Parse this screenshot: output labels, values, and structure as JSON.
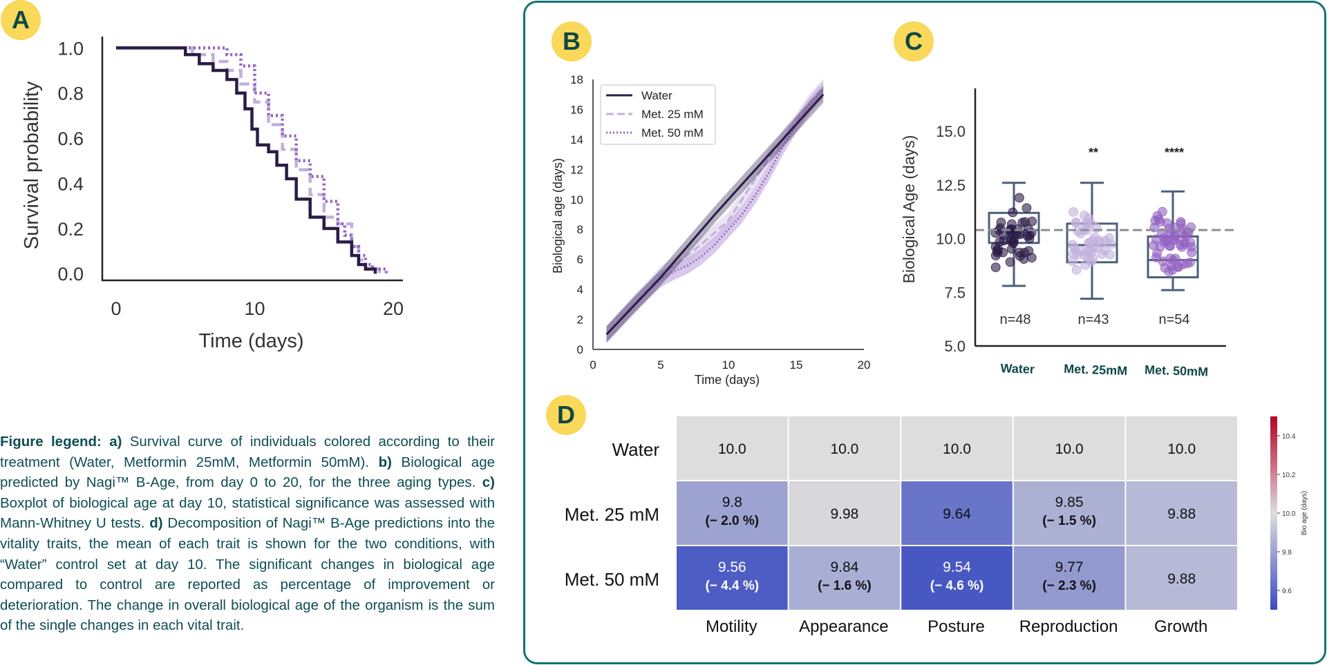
{
  "badges": {
    "a": "A",
    "b": "B",
    "c": "C",
    "d": "D"
  },
  "legend": {
    "title": "Figure legend:",
    "a_label": "a)",
    "a_text": "Survival curve of individuals colored according to their treatment (Water, Metformin 25mM, Metformin 50mM).",
    "b_label": "b)",
    "b_text": "Biological age predicted by Nagi™ B-Age, from day 0 to 20, for the three aging types.",
    "c_label": "c)",
    "c_text": "Boxplot of biological age at day 10, statistical significance was assessed with Mann-Whitney U tests.",
    "d_label": "d)",
    "d_text": "Decomposition of Nagi™ B-Age predictions into the vitality traits, the mean of each trait is shown for the two conditions, with “Water” control set at day 10. The significant changes in biological age compared to control are reported as percentage of improvement or deterioration. The change in overall biological age of the organism is the sum of the single changes in each vital trait."
  },
  "colors": {
    "water": "#2b1c47",
    "met25": "#c2b0dc",
    "met50": "#9263c2",
    "badge": "#f9d85a",
    "frame": "#137272",
    "box": "#4b5f7a"
  },
  "chart_data": [
    {
      "id": "A",
      "type": "line",
      "title": "",
      "xlabel": "Time (days)",
      "ylabel": "Survival probability",
      "xlim": [
        -1,
        20.7
      ],
      "ylim": [
        -0.03,
        1.05
      ],
      "xticks": [
        "0",
        "10",
        "20"
      ],
      "yticks": [
        "0.0",
        "0.2",
        "0.4",
        "0.6",
        "0.8",
        "1.0"
      ],
      "series": [
        {
          "name": "Water",
          "x": [
            0,
            4.5,
            5,
            6,
            7,
            8,
            8.7,
            9.3,
            9.8,
            10.2,
            11,
            11.6,
            12.3,
            13,
            14,
            15,
            16,
            17,
            17.5,
            18,
            18.7
          ],
          "y": [
            1.0,
            1.0,
            0.97,
            0.93,
            0.9,
            0.86,
            0.8,
            0.73,
            0.64,
            0.57,
            0.54,
            0.48,
            0.42,
            0.33,
            0.25,
            0.2,
            0.14,
            0.08,
            0.04,
            0.02,
            0.0
          ]
        },
        {
          "name": "Met. 25 mM",
          "x": [
            0,
            4.5,
            5.5,
            7,
            8,
            9,
            10,
            11,
            12,
            13,
            14,
            15,
            16,
            17,
            17.5,
            18,
            19
          ],
          "y": [
            1.0,
            1.0,
            0.97,
            0.94,
            0.9,
            0.84,
            0.76,
            0.66,
            0.55,
            0.46,
            0.35,
            0.25,
            0.22,
            0.12,
            0.06,
            0.02,
            0.0
          ]
        },
        {
          "name": "Met. 50 mM",
          "x": [
            0,
            7,
            8,
            9,
            10,
            11,
            12,
            13,
            14,
            15,
            16,
            16.5,
            17,
            17.5,
            18,
            18.5,
            19.5
          ],
          "y": [
            1.0,
            1.0,
            0.97,
            0.92,
            0.8,
            0.7,
            0.61,
            0.5,
            0.43,
            0.32,
            0.22,
            0.17,
            0.12,
            0.08,
            0.04,
            0.02,
            0.0
          ]
        }
      ]
    },
    {
      "id": "B",
      "type": "line",
      "title": "",
      "xlabel": "Time (days)",
      "ylabel": "Biological age (days)",
      "xlim": [
        0,
        20
      ],
      "ylim": [
        0,
        18
      ],
      "xticks": [
        "0",
        "5",
        "10",
        "15",
        "20"
      ],
      "yticks": [
        "0",
        "2",
        "4",
        "6",
        "8",
        "10",
        "12",
        "14",
        "16",
        "18"
      ],
      "legend": [
        "Water",
        "Met. 25 mM",
        "Met. 50 mM"
      ],
      "series": [
        {
          "name": "Water",
          "x": [
            1,
            3,
            5,
            7,
            9,
            11,
            13,
            15,
            17
          ],
          "y": [
            1.0,
            2.9,
            4.8,
            6.9,
            9.0,
            11.0,
            13.0,
            15.0,
            17.0
          ]
        },
        {
          "name": "Met. 25 mM",
          "x": [
            1,
            3,
            5,
            6,
            7,
            8,
            9,
            10,
            11,
            12,
            13,
            14,
            15,
            16,
            17
          ],
          "y": [
            1.0,
            3.0,
            5.0,
            5.6,
            6.3,
            7.0,
            7.8,
            8.6,
            10.0,
            11.4,
            12.8,
            14.0,
            15.2,
            16.5,
            17.5
          ]
        },
        {
          "name": "Met. 50 mM",
          "x": [
            1,
            3,
            5,
            6,
            7,
            8,
            9,
            10,
            11,
            12,
            13,
            14,
            15,
            16,
            17
          ],
          "y": [
            1.0,
            3.0,
            4.7,
            5.2,
            5.6,
            6.2,
            7.0,
            8.0,
            9.0,
            10.3,
            11.8,
            13.5,
            15.0,
            16.3,
            17.3
          ]
        }
      ]
    },
    {
      "id": "C",
      "type": "box",
      "title": "",
      "xlabel": "",
      "ylabel": "Biological Age (days)",
      "ylim": [
        5,
        17
      ],
      "yticks": [
        "5.0",
        "7.5",
        "10.0",
        "12.5",
        "15.0"
      ],
      "reference_line": 10.4,
      "categories": [
        "Water",
        "Met. 25mM",
        "Met. 50mM"
      ],
      "boxes": [
        {
          "min": 7.8,
          "q1": 9.8,
          "median": 10.4,
          "q3": 11.2,
          "max": 12.6,
          "n_label": "n=48",
          "significance": ""
        },
        {
          "min": 7.2,
          "q1": 8.9,
          "median": 9.7,
          "q3": 10.7,
          "max": 12.6,
          "n_label": "n=43",
          "significance": "**"
        },
        {
          "min": 7.6,
          "q1": 8.2,
          "median": 9.0,
          "q3": 10.1,
          "max": 12.2,
          "n_label": "n=54",
          "significance": "****"
        }
      ]
    },
    {
      "id": "D",
      "type": "heatmap",
      "rows": [
        "Water",
        "Met. 25 mM",
        "Met. 50 mM"
      ],
      "columns": [
        "Motility",
        "Appearance",
        "Posture",
        "Reproduction",
        "Growth"
      ],
      "values": [
        [
          10.0,
          10.0,
          10.0,
          10.0,
          10.0
        ],
        [
          9.8,
          9.98,
          9.64,
          9.85,
          9.88
        ],
        [
          9.56,
          9.84,
          9.54,
          9.77,
          9.88
        ]
      ],
      "cells": [
        [
          {
            "value": "10.0",
            "change": ""
          },
          {
            "value": "10.0",
            "change": ""
          },
          {
            "value": "10.0",
            "change": ""
          },
          {
            "value": "10.0",
            "change": ""
          },
          {
            "value": "10.0",
            "change": ""
          }
        ],
        [
          {
            "value": "9.8",
            "change": "(− 2.0 %)"
          },
          {
            "value": "9.98",
            "change": ""
          },
          {
            "value": "9.64",
            "change": ""
          },
          {
            "value": "9.85",
            "change": "(− 1.5 %)"
          },
          {
            "value": "9.88",
            "change": ""
          }
        ],
        [
          {
            "value": "9.56",
            "change": "(− 4.4 %)"
          },
          {
            "value": "9.84",
            "change": "(− 1.6 %)"
          },
          {
            "value": "9.54",
            "change": "(− 4.6 %)"
          },
          {
            "value": "9.77",
            "change": "(− 2.3 %)"
          },
          {
            "value": "9.88",
            "change": ""
          }
        ]
      ],
      "colorbar_label": "Bio age (days)",
      "colorbar_ticks": [
        "10.4",
        "10.2",
        "10.0",
        "9.8",
        "9.6"
      ],
      "colorbar_range": [
        9.5,
        10.5
      ]
    }
  ]
}
